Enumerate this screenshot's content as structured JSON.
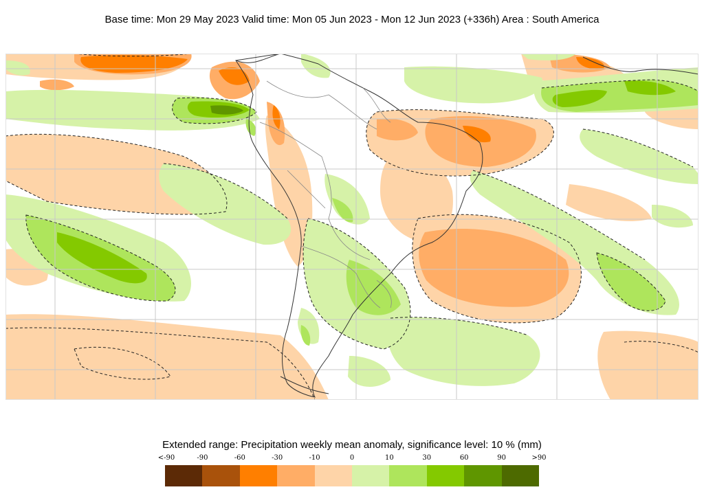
{
  "header": {
    "title": "Base time: Mon 29 May 2023 Valid time: Mon 05 Jun 2023 - Mon 12 Jun 2023 (+336h) Area : South America"
  },
  "legend": {
    "title": "Extended range: Precipitation weekly mean anomaly, significance level: 10 % (mm)",
    "labels": [
      "<-90",
      "-90",
      "-60",
      "-30",
      "-10",
      "0",
      "10",
      "30",
      "60",
      "90",
      ">90"
    ],
    "colors": [
      "#5c2a06",
      "#a9520b",
      "#ff7f00",
      "#ffad66",
      "#fed4a8",
      "#ffffff",
      "#d6f2a8",
      "#aee55c",
      "#84c900",
      "#5f9600",
      "#4d6a00"
    ]
  }
}
